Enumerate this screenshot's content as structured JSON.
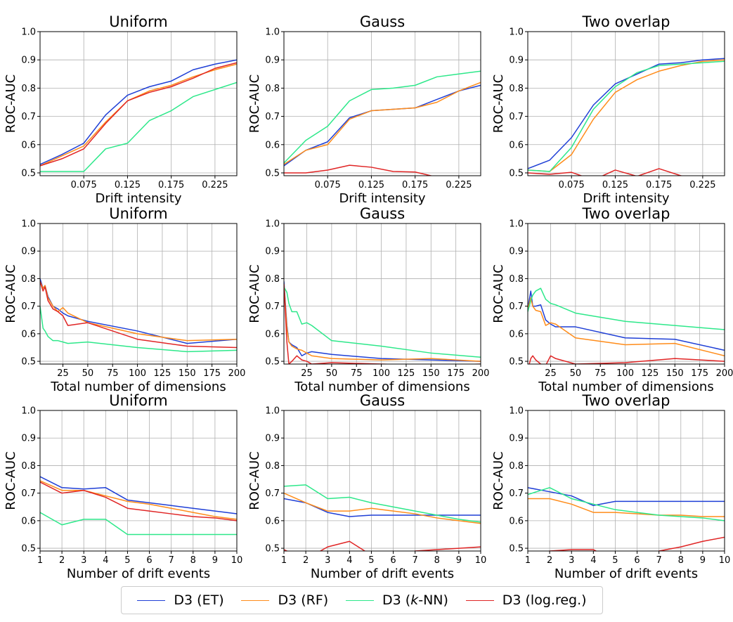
{
  "colors": {
    "et": "#1f3fd6",
    "rf": "#ff8c1a",
    "knn": "#2de88a",
    "logreg": "#e02525",
    "grid": "#b0b0b0",
    "axis": "#000000"
  },
  "legend": {
    "items": [
      {
        "key": "et",
        "prefix": "D3 (ET)",
        "italic": "",
        "suffix": ""
      },
      {
        "key": "rf",
        "prefix": "D3 (RF)",
        "italic": "",
        "suffix": ""
      },
      {
        "key": "knn",
        "prefix": "D3 (",
        "italic": "k",
        "suffix": "-NN)"
      },
      {
        "key": "logreg",
        "prefix": "D3 (log.reg.)",
        "italic": "",
        "suffix": ""
      }
    ]
  },
  "chart_data": [
    {
      "type": "line",
      "row": 0,
      "col": 0,
      "title": "Uniform",
      "xlabel": "Drift intensity",
      "ylabel": "ROC-AUC",
      "xlim": [
        0.025,
        0.25
      ],
      "ylim": [
        0.49,
        1.0
      ],
      "xticks": [
        0.075,
        0.125,
        0.175,
        0.225
      ],
      "xtick_labels": [
        "0.075",
        "0.125",
        "0.175",
        "0.225"
      ],
      "yticks": [
        0.5,
        0.6,
        0.7,
        0.8,
        0.9,
        1.0
      ],
      "ytick_labels": [
        "0.5",
        "0.6",
        "0.7",
        "0.8",
        "0.9",
        "1.0"
      ],
      "x": [
        0.025,
        0.05,
        0.075,
        0.1,
        0.125,
        0.15,
        0.175,
        0.2,
        0.225,
        0.25
      ],
      "series": [
        {
          "key": "et",
          "values": [
            0.53,
            0.565,
            0.605,
            0.705,
            0.775,
            0.805,
            0.825,
            0.865,
            0.885,
            0.9
          ]
        },
        {
          "key": "rf",
          "values": [
            0.525,
            0.56,
            0.595,
            0.68,
            0.755,
            0.79,
            0.81,
            0.84,
            0.865,
            0.885
          ]
        },
        {
          "key": "knn",
          "values": [
            0.505,
            0.505,
            0.505,
            0.585,
            0.605,
            0.685,
            0.72,
            0.77,
            0.795,
            0.82
          ]
        },
        {
          "key": "logreg",
          "values": [
            0.525,
            0.55,
            0.585,
            0.675,
            0.755,
            0.785,
            0.805,
            0.835,
            0.87,
            0.89
          ]
        }
      ]
    },
    {
      "type": "line",
      "row": 0,
      "col": 1,
      "title": "Gauss",
      "xlabel": "Drift intensity",
      "ylabel": "ROC-AUC",
      "xlim": [
        0.025,
        0.25
      ],
      "ylim": [
        0.49,
        1.0
      ],
      "xticks": [
        0.075,
        0.125,
        0.175,
        0.225
      ],
      "xtick_labels": [
        "0.075",
        "0.125",
        "0.175",
        "0.225"
      ],
      "yticks": [
        0.5,
        0.6,
        0.7,
        0.8,
        0.9,
        1.0
      ],
      "ytick_labels": [
        "0.5",
        "0.6",
        "0.7",
        "0.8",
        "0.9",
        "1.0"
      ],
      "x": [
        0.025,
        0.05,
        0.075,
        0.1,
        0.125,
        0.15,
        0.175,
        0.2,
        0.225,
        0.25
      ],
      "series": [
        {
          "key": "et",
          "values": [
            0.525,
            0.58,
            0.61,
            0.695,
            0.72,
            0.725,
            0.73,
            0.76,
            0.79,
            0.81
          ]
        },
        {
          "key": "rf",
          "values": [
            0.53,
            0.58,
            0.6,
            0.69,
            0.72,
            0.725,
            0.73,
            0.75,
            0.79,
            0.82
          ]
        },
        {
          "key": "knn",
          "values": [
            0.535,
            0.615,
            0.665,
            0.755,
            0.795,
            0.8,
            0.81,
            0.84,
            0.85,
            0.86
          ]
        },
        {
          "key": "logreg",
          "values": [
            0.5,
            0.5,
            0.51,
            0.527,
            0.52,
            0.505,
            0.503,
            0.485,
            0.475,
            0.47
          ]
        }
      ]
    },
    {
      "type": "line",
      "row": 0,
      "col": 2,
      "title": "Two overlap",
      "xlabel": "Drift intensity",
      "ylabel": "ROC-AUC",
      "xlim": [
        0.025,
        0.25
      ],
      "ylim": [
        0.49,
        1.0
      ],
      "xticks": [
        0.075,
        0.125,
        0.175,
        0.225
      ],
      "xtick_labels": [
        "0.075",
        "0.125",
        "0.175",
        "0.225"
      ],
      "yticks": [
        0.5,
        0.6,
        0.7,
        0.8,
        0.9,
        1.0
      ],
      "ytick_labels": [
        "0.5",
        "0.6",
        "0.7",
        "0.8",
        "0.9",
        "1.0"
      ],
      "x": [
        0.025,
        0.05,
        0.075,
        0.1,
        0.125,
        0.15,
        0.175,
        0.2,
        0.225,
        0.25
      ],
      "series": [
        {
          "key": "et",
          "values": [
            0.515,
            0.545,
            0.625,
            0.74,
            0.815,
            0.85,
            0.885,
            0.89,
            0.9,
            0.905
          ]
        },
        {
          "key": "rf",
          "values": [
            0.51,
            0.505,
            0.565,
            0.69,
            0.785,
            0.83,
            0.86,
            0.88,
            0.895,
            0.9
          ]
        },
        {
          "key": "knn",
          "values": [
            0.51,
            0.505,
            0.59,
            0.725,
            0.805,
            0.855,
            0.88,
            0.885,
            0.89,
            0.895
          ]
        },
        {
          "key": "logreg",
          "values": [
            0.5,
            0.495,
            0.502,
            0.475,
            0.51,
            0.488,
            0.515,
            0.49,
            0.48,
            0.485
          ]
        }
      ]
    },
    {
      "type": "line",
      "row": 1,
      "col": 0,
      "title": "Uniform",
      "xlabel": "Total number of dimensions",
      "ylabel": "ROC-AUC",
      "xlim": [
        2,
        200
      ],
      "ylim": [
        0.49,
        1.0
      ],
      "xticks": [
        25,
        50,
        75,
        100,
        125,
        150,
        175,
        200
      ],
      "xtick_labels": [
        "25",
        "50",
        "75",
        "100",
        "125",
        "150",
        "175",
        "200"
      ],
      "yticks": [
        0.5,
        0.6,
        0.7,
        0.8,
        0.9,
        1.0
      ],
      "ytick_labels": [
        "0.5",
        "0.6",
        "0.7",
        "0.8",
        "0.9",
        "1.0"
      ],
      "x": [
        2,
        5,
        7,
        10,
        15,
        20,
        25,
        30,
        50,
        100,
        150,
        200
      ],
      "series": [
        {
          "key": "et",
          "values": [
            0.8,
            0.765,
            0.775,
            0.735,
            0.7,
            0.69,
            0.675,
            0.665,
            0.645,
            0.61,
            0.565,
            0.58
          ]
        },
        {
          "key": "rf",
          "values": [
            0.79,
            0.765,
            0.775,
            0.73,
            0.7,
            0.68,
            0.695,
            0.675,
            0.64,
            0.6,
            0.575,
            0.58
          ]
        },
        {
          "key": "knn",
          "values": [
            0.7,
            0.62,
            0.61,
            0.59,
            0.575,
            0.575,
            0.57,
            0.565,
            0.57,
            0.55,
            0.535,
            0.54
          ]
        },
        {
          "key": "logreg",
          "values": [
            0.79,
            0.755,
            0.77,
            0.72,
            0.69,
            0.68,
            0.665,
            0.63,
            0.64,
            0.58,
            0.555,
            0.55
          ]
        }
      ]
    },
    {
      "type": "line",
      "row": 1,
      "col": 1,
      "title": "Gauss",
      "xlabel": "Total number of dimensions",
      "ylabel": "ROC-AUC",
      "xlim": [
        2,
        200
      ],
      "ylim": [
        0.49,
        1.0
      ],
      "xticks": [
        25,
        50,
        75,
        100,
        125,
        150,
        175,
        200
      ],
      "xtick_labels": [
        "25",
        "50",
        "75",
        "100",
        "125",
        "150",
        "175",
        "200"
      ],
      "yticks": [
        0.5,
        0.6,
        0.7,
        0.8,
        0.9,
        1.0
      ],
      "ytick_labels": [
        "0.5",
        "0.6",
        "0.7",
        "0.8",
        "0.9",
        "1.0"
      ],
      "x": [
        2,
        5,
        7,
        10,
        15,
        20,
        25,
        30,
        50,
        100,
        150,
        200
      ],
      "series": [
        {
          "key": "et",
          "values": [
            0.79,
            0.63,
            0.57,
            0.56,
            0.55,
            0.52,
            0.53,
            0.535,
            0.525,
            0.51,
            0.505,
            0.5
          ]
        },
        {
          "key": "rf",
          "values": [
            0.78,
            0.62,
            0.57,
            0.555,
            0.545,
            0.54,
            0.53,
            0.52,
            0.51,
            0.505,
            0.51,
            0.5
          ]
        },
        {
          "key": "knn",
          "values": [
            0.77,
            0.75,
            0.71,
            0.68,
            0.68,
            0.635,
            0.64,
            0.63,
            0.575,
            0.555,
            0.53,
            0.515
          ]
        },
        {
          "key": "logreg",
          "values": [
            0.78,
            0.57,
            0.49,
            0.5,
            0.52,
            0.505,
            0.5,
            0.49,
            0.495,
            0.49,
            0.485,
            0.49
          ]
        }
      ]
    },
    {
      "type": "line",
      "row": 1,
      "col": 2,
      "title": "Two overlap",
      "xlabel": "Total number of dimensions",
      "ylabel": "ROC-AUC",
      "xlim": [
        2,
        200
      ],
      "ylim": [
        0.49,
        1.0
      ],
      "xticks": [
        25,
        50,
        75,
        100,
        125,
        150,
        175,
        200
      ],
      "xtick_labels": [
        "25",
        "50",
        "75",
        "100",
        "125",
        "150",
        "175",
        "200"
      ],
      "yticks": [
        0.5,
        0.6,
        0.7,
        0.8,
        0.9,
        1.0
      ],
      "ytick_labels": [
        "0.5",
        "0.6",
        "0.7",
        "0.8",
        "0.9",
        "1.0"
      ],
      "x": [
        2,
        5,
        7,
        10,
        15,
        20,
        25,
        30,
        50,
        100,
        150,
        200
      ],
      "series": [
        {
          "key": "et",
          "values": [
            0.69,
            0.755,
            0.7,
            0.7,
            0.705,
            0.65,
            0.635,
            0.625,
            0.625,
            0.585,
            0.58,
            0.54
          ]
        },
        {
          "key": "rf",
          "values": [
            0.69,
            0.73,
            0.7,
            0.685,
            0.68,
            0.63,
            0.64,
            0.635,
            0.585,
            0.56,
            0.565,
            0.52
          ]
        },
        {
          "key": "knn",
          "values": [
            0.68,
            0.72,
            0.74,
            0.755,
            0.765,
            0.725,
            0.71,
            0.705,
            0.675,
            0.645,
            0.63,
            0.615
          ]
        },
        {
          "key": "logreg",
          "values": [
            0.47,
            0.51,
            0.52,
            0.505,
            0.49,
            0.485,
            0.52,
            0.51,
            0.49,
            0.495,
            0.51,
            0.5
          ]
        }
      ]
    },
    {
      "type": "line",
      "row": 2,
      "col": 0,
      "title": "Uniform",
      "xlabel": "Number of drift events",
      "ylabel": "ROC-AUC",
      "xlim": [
        1,
        10
      ],
      "ylim": [
        0.49,
        1.0
      ],
      "xticks": [
        1,
        2,
        3,
        4,
        5,
        6,
        7,
        8,
        9,
        10
      ],
      "xtick_labels": [
        "1",
        "2",
        "3",
        "4",
        "5",
        "6",
        "7",
        "8",
        "9",
        "10"
      ],
      "yticks": [
        0.5,
        0.6,
        0.7,
        0.8,
        0.9,
        1.0
      ],
      "ytick_labels": [
        "0.5",
        "0.6",
        "0.7",
        "0.8",
        "0.9",
        "1.0"
      ],
      "x": [
        1,
        2,
        3,
        4,
        5,
        6,
        7,
        8,
        9,
        10
      ],
      "series": [
        {
          "key": "et",
          "values": [
            0.76,
            0.72,
            0.715,
            0.72,
            0.675,
            0.665,
            0.655,
            0.645,
            0.635,
            0.625
          ]
        },
        {
          "key": "rf",
          "values": [
            0.745,
            0.71,
            0.71,
            0.69,
            0.67,
            0.66,
            0.645,
            0.63,
            0.615,
            0.605
          ]
        },
        {
          "key": "knn",
          "values": [
            0.63,
            0.585,
            0.605,
            0.605,
            0.55,
            0.55,
            0.55,
            0.55,
            0.55,
            0.55
          ]
        },
        {
          "key": "logreg",
          "values": [
            0.74,
            0.7,
            0.71,
            0.685,
            0.645,
            0.635,
            0.625,
            0.615,
            0.61,
            0.6
          ]
        }
      ]
    },
    {
      "type": "line",
      "row": 2,
      "col": 1,
      "title": "Gauss",
      "xlabel": "Number of drift events",
      "ylabel": "ROC-AUC",
      "xlim": [
        1,
        10
      ],
      "ylim": [
        0.49,
        1.0
      ],
      "xticks": [
        1,
        2,
        3,
        4,
        5,
        6,
        7,
        8,
        9,
        10
      ],
      "xtick_labels": [
        "1",
        "2",
        "3",
        "4",
        "5",
        "6",
        "7",
        "8",
        "9",
        "10"
      ],
      "yticks": [
        0.5,
        0.6,
        0.7,
        0.8,
        0.9,
        1.0
      ],
      "ytick_labels": [
        "0.5",
        "0.6",
        "0.7",
        "0.8",
        "0.9",
        "1.0"
      ],
      "x": [
        1,
        2,
        3,
        4,
        5,
        6,
        7,
        8,
        9,
        10
      ],
      "series": [
        {
          "key": "et",
          "values": [
            0.68,
            0.665,
            0.63,
            0.615,
            0.62,
            0.62,
            0.62,
            0.62,
            0.62,
            0.62
          ]
        },
        {
          "key": "rf",
          "values": [
            0.7,
            0.665,
            0.635,
            0.635,
            0.645,
            0.635,
            0.625,
            0.61,
            0.6,
            0.59
          ]
        },
        {
          "key": "knn",
          "values": [
            0.725,
            0.73,
            0.68,
            0.685,
            0.665,
            0.65,
            0.635,
            0.62,
            0.605,
            0.595
          ]
        },
        {
          "key": "logreg",
          "values": [
            0.495,
            0.46,
            0.505,
            0.525,
            0.475,
            0.47,
            0.49,
            0.495,
            0.5,
            0.505
          ]
        }
      ]
    },
    {
      "type": "line",
      "row": 2,
      "col": 2,
      "title": "Two overlap",
      "xlabel": "Number of drift events",
      "ylabel": "ROC-AUC",
      "xlim": [
        1,
        10
      ],
      "ylim": [
        0.49,
        1.0
      ],
      "xticks": [
        1,
        2,
        3,
        4,
        5,
        6,
        7,
        8,
        9,
        10
      ],
      "xtick_labels": [
        "1",
        "2",
        "3",
        "4",
        "5",
        "6",
        "7",
        "8",
        "9",
        "10"
      ],
      "yticks": [
        0.5,
        0.6,
        0.7,
        0.8,
        0.9,
        1.0
      ],
      "ytick_labels": [
        "0.5",
        "0.6",
        "0.7",
        "0.8",
        "0.9",
        "1.0"
      ],
      "x": [
        1,
        2,
        3,
        4,
        5,
        6,
        7,
        8,
        9,
        10
      ],
      "series": [
        {
          "key": "et",
          "values": [
            0.72,
            0.705,
            0.69,
            0.655,
            0.67,
            0.67,
            0.67,
            0.67,
            0.67,
            0.67
          ]
        },
        {
          "key": "rf",
          "values": [
            0.68,
            0.68,
            0.66,
            0.63,
            0.63,
            0.625,
            0.62,
            0.62,
            0.615,
            0.615
          ]
        },
        {
          "key": "knn",
          "values": [
            0.695,
            0.72,
            0.68,
            0.66,
            0.64,
            0.63,
            0.62,
            0.615,
            0.61,
            0.6
          ]
        },
        {
          "key": "logreg",
          "values": [
            0.47,
            0.49,
            0.495,
            0.495,
            0.455,
            0.46,
            0.49,
            0.505,
            0.525,
            0.54
          ]
        }
      ]
    }
  ]
}
